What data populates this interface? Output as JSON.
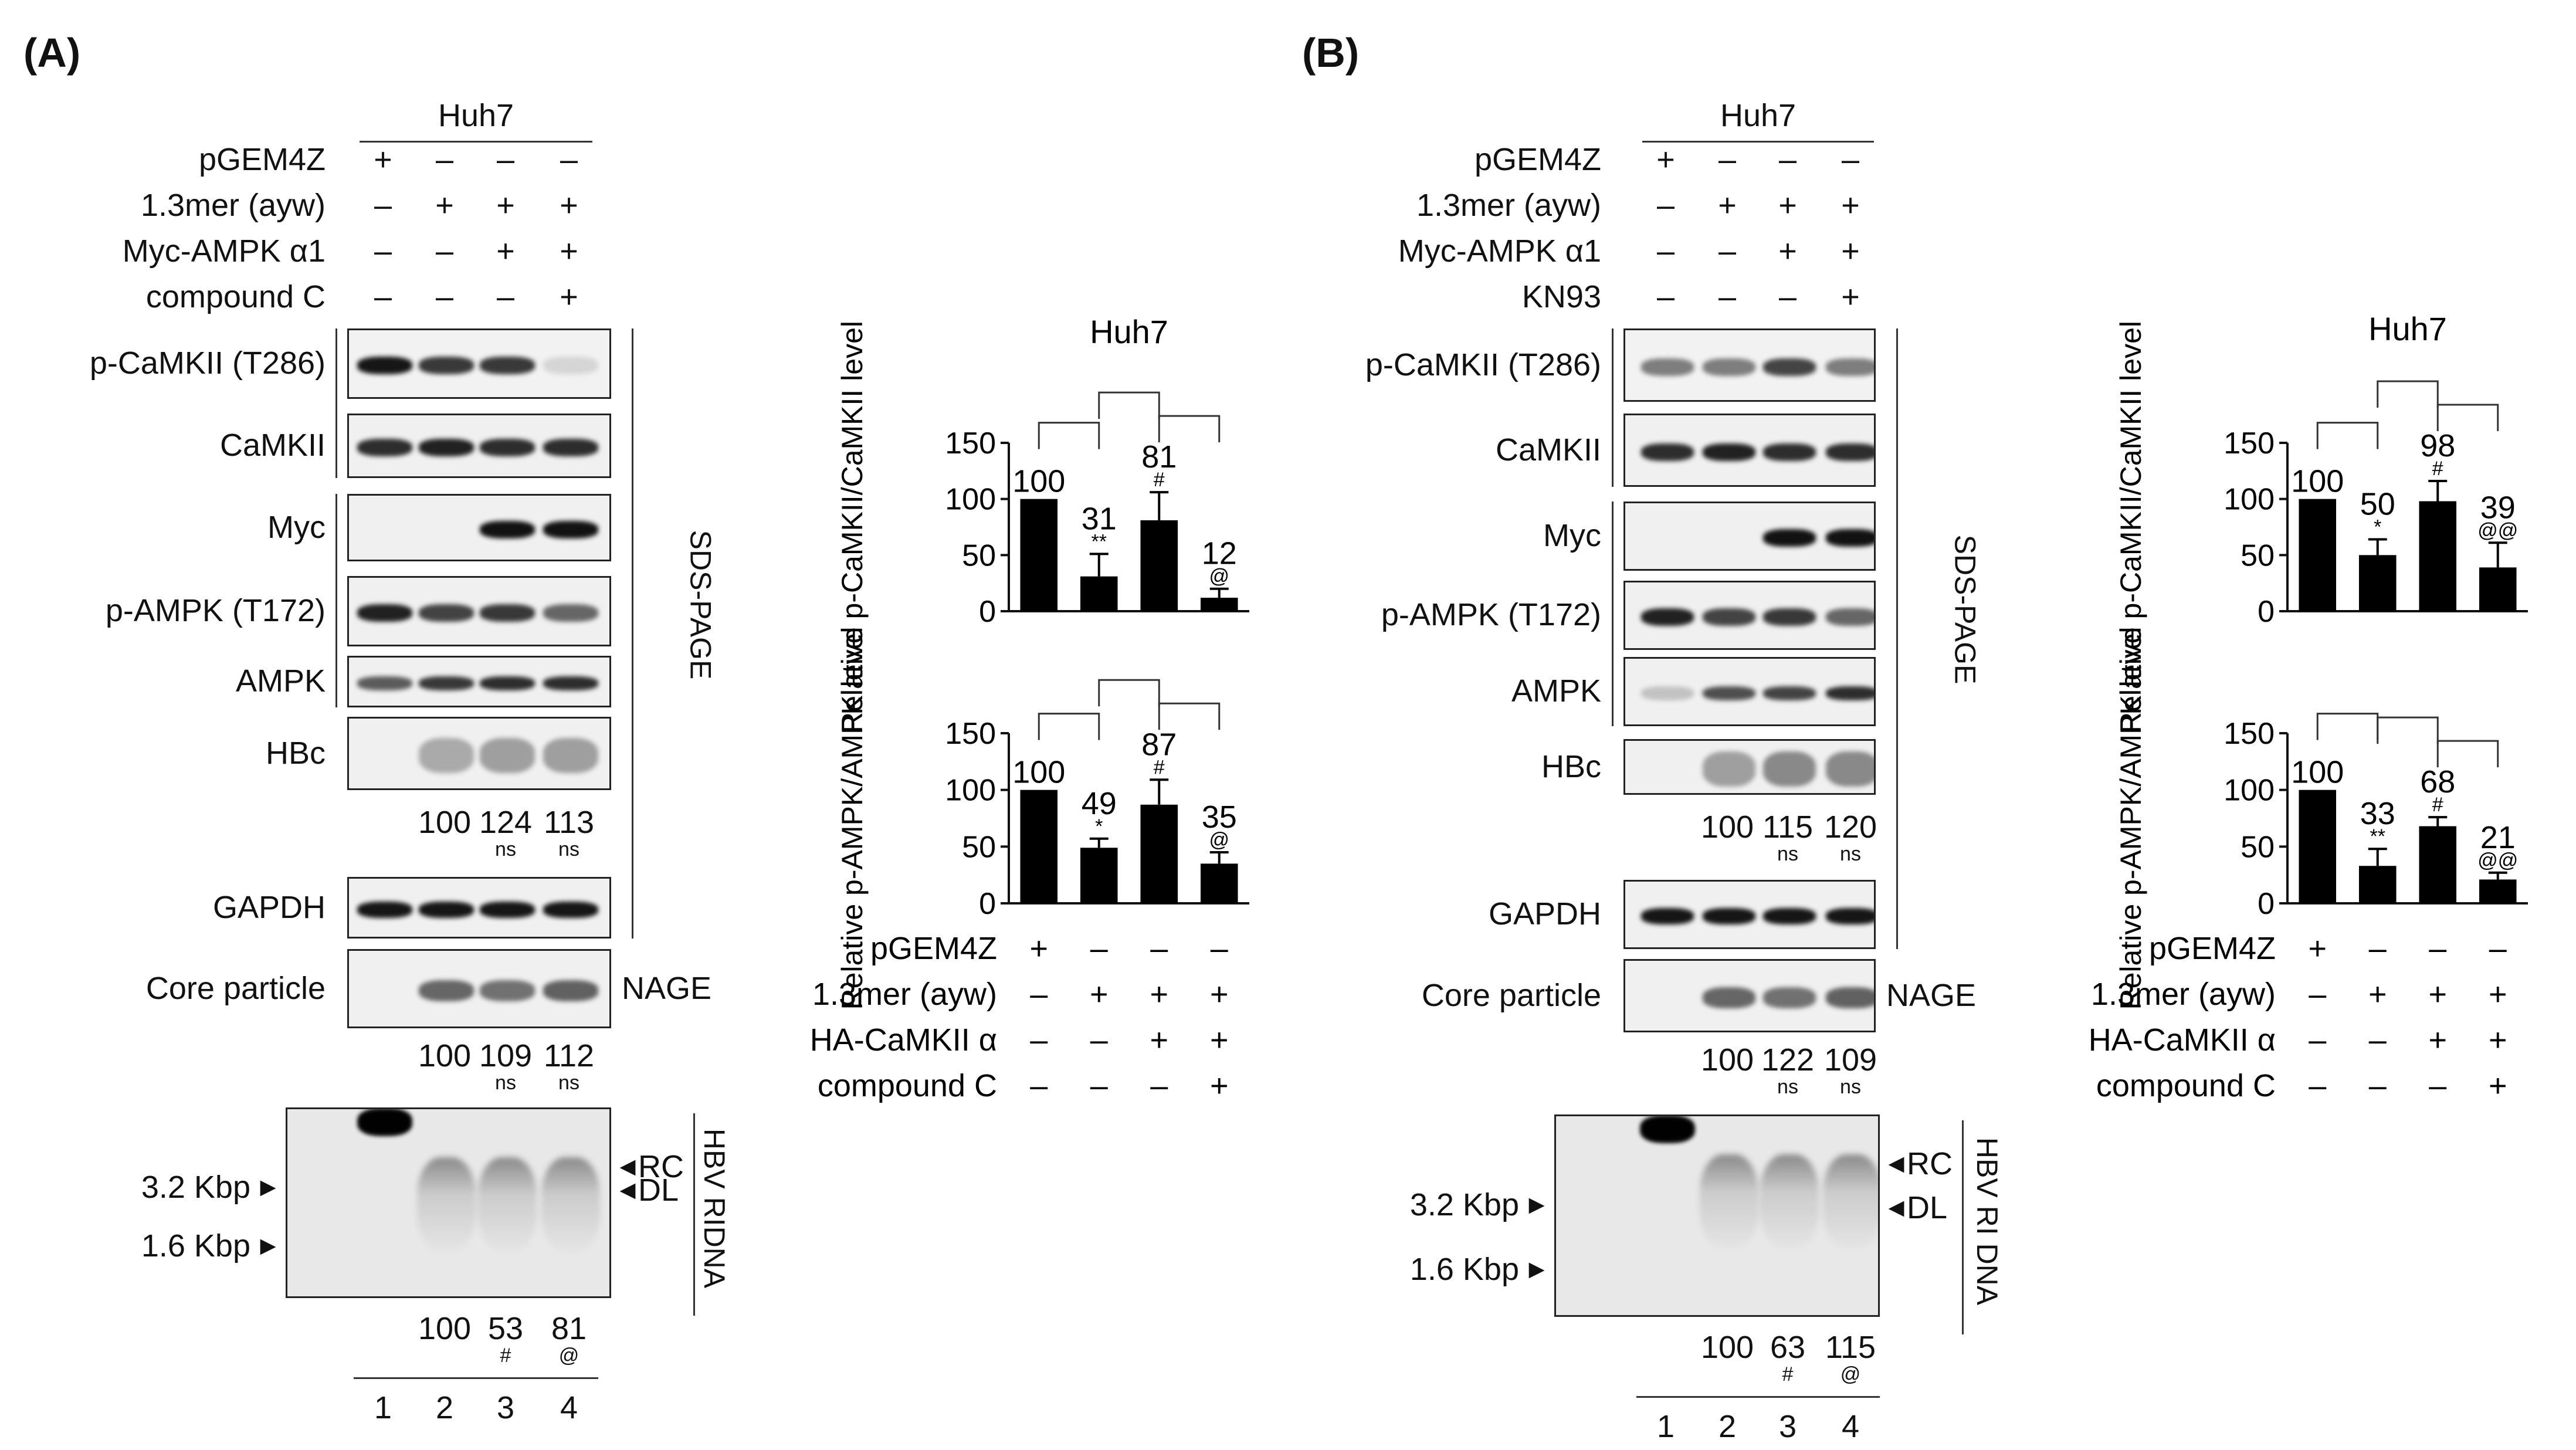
{
  "panels": {
    "A": "(A)",
    "B": "(B)"
  },
  "symbols": {
    "plus": "+",
    "minus": "–",
    "arrow_right": "▸",
    "arrow_left": "◂"
  },
  "A": {
    "cell": "Huh7",
    "rows": [
      {
        "label": "pGEM4Z",
        "v": [
          "+",
          "–",
          "–",
          "–"
        ]
      },
      {
        "label": "1.3mer (ayw)",
        "v": [
          "–",
          "+",
          "+",
          "+"
        ]
      },
      {
        "label": "Myc-AMPK α1",
        "v": [
          "–",
          "–",
          "+",
          "+"
        ]
      },
      {
        "label": "compound C",
        "v": [
          "–",
          "–",
          "–",
          "+"
        ]
      }
    ],
    "blots": [
      "p-CaMKII (T286)",
      "CaMKII",
      "Myc",
      "p-AMPK (T172)",
      "AMPK",
      "HBc",
      "GAPDH",
      "Core particle"
    ],
    "hbc_quant": {
      "values": [
        "100",
        "124",
        "113"
      ],
      "sig": [
        "",
        "ns",
        "ns"
      ]
    },
    "core_quant": {
      "values": [
        "100",
        "109",
        "112"
      ],
      "sig": [
        "",
        "ns",
        "ns"
      ]
    },
    "sds_label": "SDS-PAGE",
    "nage_label": "NAGE",
    "southern": {
      "markers": [
        "3.2 Kbp",
        "1.6 Kbp"
      ],
      "bands": [
        "RC",
        "DL"
      ],
      "side_label": "HBV RIDNA",
      "values": [
        "100",
        "53",
        "81"
      ],
      "sig": [
        "",
        "#",
        "@"
      ]
    },
    "lanes": [
      "1",
      "2",
      "3",
      "4"
    ]
  },
  "B": {
    "cell": "Huh7",
    "rows": [
      {
        "label": "pGEM4Z",
        "v": [
          "+",
          "–",
          "–",
          "–"
        ]
      },
      {
        "label": "1.3mer (ayw)",
        "v": [
          "–",
          "+",
          "+",
          "+"
        ]
      },
      {
        "label": "Myc-AMPK α1",
        "v": [
          "–",
          "–",
          "+",
          "+"
        ]
      },
      {
        "label": "KN93",
        "v": [
          "–",
          "–",
          "–",
          "+"
        ]
      }
    ],
    "blots": [
      "p-CaMKII (T286)",
      "CaMKII",
      "Myc",
      "p-AMPK (T172)",
      "AMPK",
      "HBc",
      "GAPDH",
      "Core particle"
    ],
    "hbc_quant": {
      "values": [
        "100",
        "115",
        "120"
      ],
      "sig": [
        "",
        "ns",
        "ns"
      ]
    },
    "core_quant": {
      "values": [
        "100",
        "122",
        "109"
      ],
      "sig": [
        "",
        "ns",
        "ns"
      ]
    },
    "sds_label": "SDS-PAGE",
    "nage_label": "NAGE",
    "southern": {
      "markers": [
        "3.2 Kbp",
        "1.6 Kbp"
      ],
      "bands": [
        "RC",
        "DL"
      ],
      "side_label": "HBV RI DNA",
      "values": [
        "100",
        "63",
        "115"
      ],
      "sig": [
        "",
        "#",
        "@"
      ]
    },
    "lanes": [
      "1",
      "2",
      "3",
      "4"
    ]
  },
  "chart_data": [
    {
      "type": "bar",
      "panel": "A",
      "title": "Huh7",
      "ylabel": "Relative p-CaMKII/CaMKII level",
      "ylim": [
        0,
        150
      ],
      "yticks": [
        0,
        50,
        100,
        150
      ],
      "values": [
        100,
        31,
        81,
        12
      ],
      "errors": [
        0,
        20,
        25,
        8
      ],
      "labels": [
        "100",
        "31",
        "81",
        "12"
      ],
      "sig": [
        "",
        "**",
        "#",
        "@"
      ]
    },
    {
      "type": "bar",
      "panel": "A",
      "title": "",
      "ylabel": "Relative p-AMPK/AMPK level",
      "ylim": [
        0,
        150
      ],
      "yticks": [
        0,
        50,
        100,
        150
      ],
      "values": [
        100,
        49,
        87,
        35
      ],
      "errors": [
        0,
        8,
        22,
        10
      ],
      "labels": [
        "100",
        "49",
        "87",
        "35"
      ],
      "sig": [
        "",
        "*",
        "#",
        "@"
      ],
      "conditions": [
        {
          "label": "pGEM4Z",
          "v": [
            "+",
            "–",
            "–",
            "–"
          ]
        },
        {
          "label": "1.3mer (ayw)",
          "v": [
            "–",
            "+",
            "+",
            "+"
          ]
        },
        {
          "label": "HA-CaMKII α",
          "v": [
            "–",
            "–",
            "+",
            "+"
          ]
        },
        {
          "label": "compound C",
          "v": [
            "–",
            "–",
            "–",
            "+"
          ]
        }
      ]
    },
    {
      "type": "bar",
      "panel": "B",
      "title": "Huh7",
      "ylabel": "Relative p-CaMKII/CaMKII level",
      "ylim": [
        0,
        150
      ],
      "yticks": [
        0,
        50,
        100,
        150
      ],
      "values": [
        100,
        50,
        98,
        39
      ],
      "errors": [
        0,
        14,
        18,
        22
      ],
      "labels": [
        "100",
        "50",
        "98",
        "39"
      ],
      "sig": [
        "",
        "*",
        "#",
        "@@"
      ]
    },
    {
      "type": "bar",
      "panel": "B",
      "title": "",
      "ylabel": "Relative p-AMPK/AMPK level",
      "ylim": [
        0,
        150
      ],
      "yticks": [
        0,
        50,
        100,
        150
      ],
      "values": [
        100,
        33,
        68,
        21
      ],
      "errors": [
        0,
        15,
        8,
        6
      ],
      "labels": [
        "100",
        "33",
        "68",
        "21"
      ],
      "sig": [
        "",
        "**",
        "#",
        "@@"
      ],
      "conditions": [
        {
          "label": "pGEM4Z",
          "v": [
            "+",
            "–",
            "–",
            "–"
          ]
        },
        {
          "label": "1.3mer (ayw)",
          "v": [
            "–",
            "+",
            "+",
            "+"
          ]
        },
        {
          "label": "HA-CaMKII α",
          "v": [
            "–",
            "–",
            "+",
            "+"
          ]
        },
        {
          "label": "compound C",
          "v": [
            "–",
            "–",
            "–",
            "+"
          ]
        }
      ]
    }
  ]
}
